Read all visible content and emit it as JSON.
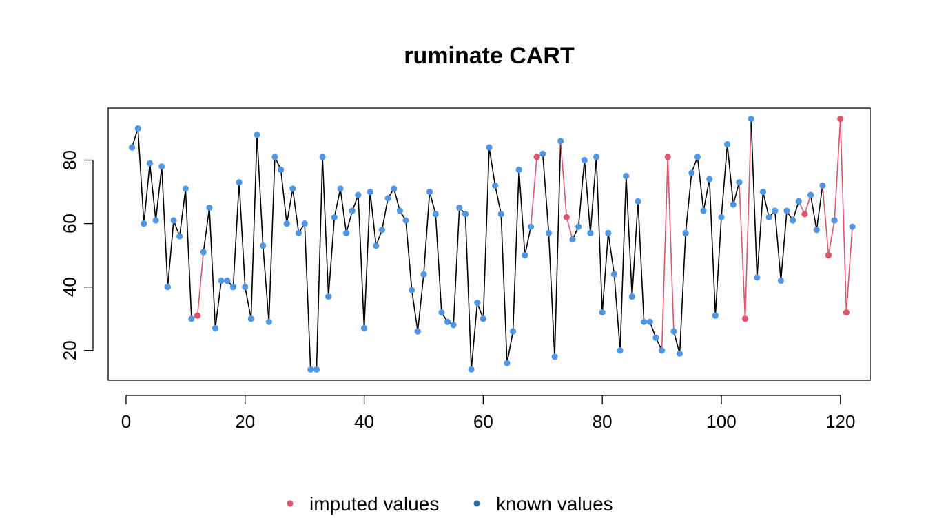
{
  "chart_data": {
    "type": "line",
    "title": "ruminate CART",
    "xlabel": "",
    "ylabel": "",
    "xlim": [
      -3,
      125
    ],
    "ylim": [
      10.6,
      96.4
    ],
    "x_ticks": [
      0,
      20,
      40,
      60,
      80,
      100,
      120
    ],
    "y_ticks": [
      20,
      40,
      60,
      80
    ],
    "grid": false,
    "legend": {
      "placement": "bottom",
      "entries": [
        {
          "label": "imputed values",
          "color": "#DF536B"
        },
        {
          "label": "known values",
          "color": "#2E6DAF"
        }
      ]
    },
    "colors": {
      "known_point": "#4F97E4",
      "imputed_point": "#DF536B",
      "known_line": "#000000",
      "imputed_line": "#DF536B"
    },
    "x": [
      1,
      2,
      3,
      4,
      5,
      6,
      7,
      8,
      9,
      10,
      11,
      12,
      13,
      14,
      15,
      16,
      17,
      18,
      19,
      20,
      21,
      22,
      23,
      24,
      25,
      26,
      27,
      28,
      29,
      30,
      31,
      32,
      33,
      34,
      35,
      36,
      37,
      38,
      39,
      40,
      41,
      42,
      43,
      44,
      45,
      46,
      47,
      48,
      49,
      50,
      51,
      52,
      53,
      54,
      55,
      56,
      57,
      58,
      59,
      60,
      61,
      62,
      63,
      64,
      65,
      66,
      67,
      68,
      69,
      70,
      71,
      72,
      73,
      74,
      75,
      76,
      77,
      78,
      79,
      80,
      81,
      82,
      83,
      84,
      85,
      86,
      87,
      88,
      89,
      90,
      91,
      92,
      93,
      94,
      95,
      96,
      97,
      98,
      99,
      100,
      101,
      102,
      103,
      104,
      105,
      106,
      107,
      108,
      109,
      110,
      111,
      112,
      113,
      114,
      115,
      116,
      117,
      118,
      119,
      120,
      121,
      122
    ],
    "values": [
      84,
      90,
      60,
      79,
      61,
      78,
      40,
      61,
      56,
      71,
      30,
      31,
      51,
      65,
      27,
      42,
      42,
      40,
      73,
      40,
      30,
      88,
      53,
      29,
      81,
      77,
      60,
      71,
      57,
      60,
      14,
      14,
      81,
      37,
      62,
      71,
      57,
      64,
      69,
      27,
      70,
      53,
      58,
      68,
      71,
      64,
      61,
      39,
      26,
      44,
      70,
      63,
      32,
      29,
      28,
      65,
      63,
      14,
      35,
      30,
      84,
      72,
      63,
      16,
      26,
      77,
      50,
      59,
      81,
      82,
      57,
      18,
      86,
      62,
      55,
      59,
      80,
      57,
      81,
      32,
      57,
      44,
      20,
      75,
      37,
      67,
      29,
      29,
      24,
      20,
      81,
      26,
      19,
      57,
      76,
      81,
      64,
      74,
      31,
      62,
      85,
      66,
      73,
      30,
      93,
      43,
      70,
      62,
      64,
      42,
      64,
      61,
      67,
      63,
      69,
      58,
      72,
      50,
      61,
      93,
      32,
      59
    ],
    "imputed": [
      12,
      69,
      74,
      91,
      104,
      114,
      118,
      120,
      121
    ]
  }
}
